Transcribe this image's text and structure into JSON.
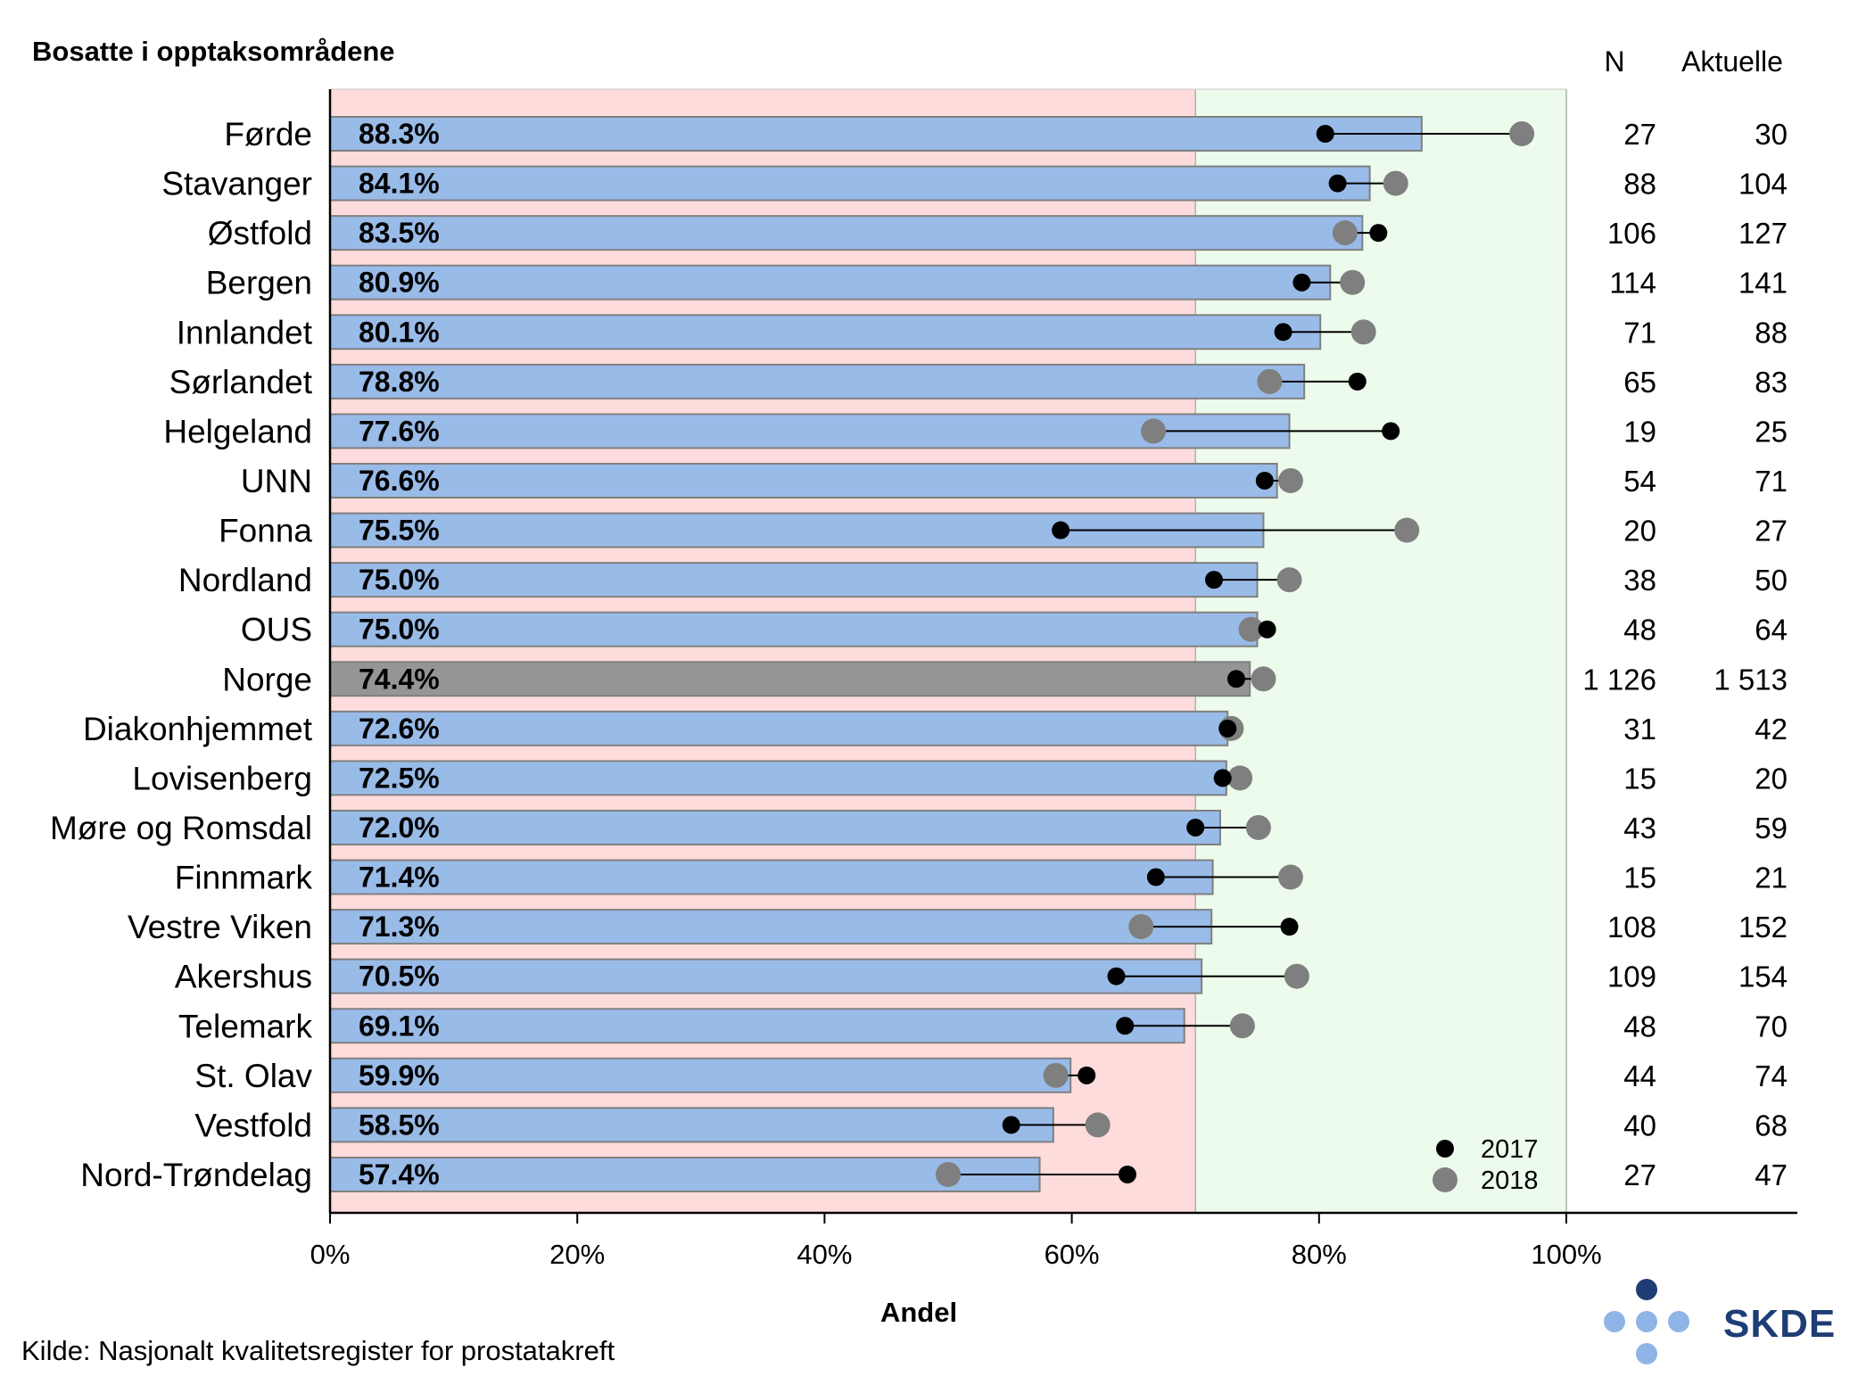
{
  "chart_data": {
    "type": "bar",
    "title": "Bosatte i opptaksområdene",
    "xlabel": "Andel",
    "xlim": [
      0,
      1
    ],
    "xticks": [
      "0%",
      "20%",
      "40%",
      "60%",
      "80%",
      "100%"
    ],
    "target_low": 0.7,
    "target_high": 1.0,
    "colors": {
      "bar": "#99bbe8",
      "bar_national": "#959595",
      "bar_edge": "#808080",
      "zone_low": "#ffdcdc",
      "zone_high": "#ecfbec",
      "dot_2017": "#000000",
      "dot_2018": "#7f7f7f",
      "logo_dark": "#1f3d75",
      "logo_light": "#8fb4e6"
    },
    "column_headers": {
      "n": "N",
      "aktuelle": "Aktuelle"
    },
    "categories": [
      "Førde",
      "Stavanger",
      "Østfold",
      "Bergen",
      "Innlandet",
      "Sørlandet",
      "Helgeland",
      "UNN",
      "Fonna",
      "Nordland",
      "OUS",
      "Norge",
      "Diakonhjemmet",
      "Lovisenberg",
      "Møre og Romsdal",
      "Finnmark",
      "Vestre Viken",
      "Akershus",
      "Telemark",
      "St. Olav",
      "Vestfold",
      "Nord-Trøndelag"
    ],
    "values": [
      0.883,
      0.841,
      0.835,
      0.809,
      0.801,
      0.788,
      0.776,
      0.766,
      0.755,
      0.75,
      0.75,
      0.744,
      0.726,
      0.725,
      0.72,
      0.714,
      0.713,
      0.705,
      0.691,
      0.599,
      0.585,
      0.574
    ],
    "labels": [
      "88.3%",
      "84.1%",
      "83.5%",
      "80.9%",
      "80.1%",
      "78.8%",
      "77.6%",
      "76.6%",
      "75.5%",
      "75.0%",
      "75.0%",
      "74.4%",
      "72.6%",
      "72.5%",
      "72.0%",
      "71.4%",
      "71.3%",
      "70.5%",
      "69.1%",
      "59.9%",
      "58.5%",
      "57.4%"
    ],
    "national_index": 11,
    "series": [
      {
        "name": "2017",
        "values": [
          0.805,
          0.815,
          0.848,
          0.786,
          0.771,
          0.831,
          0.858,
          0.756,
          0.591,
          0.715,
          0.758,
          0.733,
          0.726,
          0.722,
          0.7,
          0.668,
          0.776,
          0.636,
          0.643,
          0.612,
          0.551,
          0.645
        ]
      },
      {
        "name": "2018",
        "values": [
          0.964,
          0.862,
          0.821,
          0.827,
          0.836,
          0.76,
          0.666,
          0.777,
          0.871,
          0.776,
          0.745,
          0.755,
          0.729,
          0.736,
          0.751,
          0.777,
          0.656,
          0.782,
          0.738,
          0.587,
          0.621,
          0.5
        ]
      }
    ],
    "n": [
      "27",
      "88",
      "106",
      "114",
      "71",
      "65",
      "19",
      "54",
      "20",
      "38",
      "48",
      "1 126",
      "31",
      "15",
      "43",
      "15",
      "108",
      "109",
      "48",
      "44",
      "40",
      "27"
    ],
    "aktuelle": [
      "30",
      "104",
      "127",
      "141",
      "88",
      "83",
      "25",
      "71",
      "27",
      "50",
      "64",
      "1 513",
      "42",
      "20",
      "59",
      "21",
      "152",
      "154",
      "70",
      "74",
      "68",
      "47"
    ]
  },
  "source": "Kilde: Nasjonalt kvalitetsregister for prostatakreft",
  "logo": {
    "text": "SKDE"
  }
}
